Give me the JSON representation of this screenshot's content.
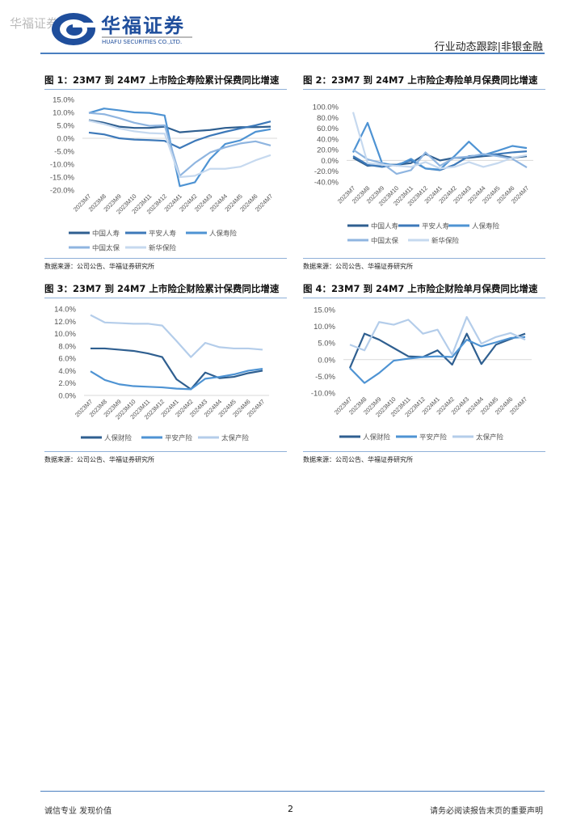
{
  "header": {
    "watermark": "华福证券",
    "brand_cn": "华福证券",
    "brand_en": "HUAFU SECURITIES CO.,LTD.",
    "report_type": "行业动态跟踪|非银金融"
  },
  "footer": {
    "left": "诚信专业  发现价值",
    "page": "2",
    "right": "请务必阅读报告末页的重要声明"
  },
  "colors": {
    "c1": "#2f5f90",
    "c2": "#3d79b9",
    "c3": "#4e93d3",
    "c4": "#8fb5e0",
    "c5": "#c6d9ef"
  },
  "chart_data": [
    {
      "type": "line",
      "title": "图 1：23M7 到 24M7 上市险企寿险累计保费同比增速",
      "source": "数据来源：公司公告、华福证券研究所",
      "categories": [
        "2023M7",
        "2023M8",
        "2023M9",
        "2023M10",
        "2023M11",
        "2023M12",
        "2024M1",
        "2024M2",
        "2024M3",
        "2024M4",
        "2024M5",
        "2024M6",
        "2024M7"
      ],
      "ylim": [
        -20,
        15
      ],
      "yticks": [
        15,
        10,
        5,
        0,
        -5,
        -10,
        -15,
        -20
      ],
      "ytick_labels": [
        "15.0%",
        "10.0%",
        "5.0%",
        "0.0%",
        "-5.0%",
        "-10.0%",
        "-15.0%",
        "-20.0%"
      ],
      "legend": "bottom",
      "series": [
        {
          "name": "中国人寿",
          "color": "#2f5f90",
          "values": [
            7,
            6,
            4.5,
            4,
            4,
            4.5,
            2.3,
            2.8,
            3.2,
            4,
            4.3,
            4.3,
            4.5
          ]
        },
        {
          "name": "平安人寿",
          "color": "#3d79b9",
          "values": [
            2.2,
            1.5,
            0,
            -0.5,
            -0.7,
            -1,
            -3.8,
            -1,
            1,
            2.5,
            3.8,
            5,
            6.5
          ]
        },
        {
          "name": "人保寿险",
          "color": "#4e93d3",
          "values": [
            9.8,
            11.5,
            10.8,
            10,
            9.8,
            8.8,
            -18.5,
            -17,
            -8,
            -2.2,
            -0.8,
            2.5,
            3.5
          ]
        },
        {
          "name": "中国太保",
          "color": "#8fb5e0",
          "values": [
            9.8,
            9.3,
            7.8,
            6,
            4.8,
            5,
            -14.5,
            -9.5,
            -5.5,
            -3.5,
            -2,
            -1.2,
            -2.8
          ]
        },
        {
          "name": "新华保险",
          "color": "#c6d9ef",
          "values": [
            6.8,
            5.5,
            3.8,
            2.7,
            2,
            1.8,
            -15,
            -14.5,
            -11.8,
            -11.8,
            -11,
            -8.5,
            -6.5
          ]
        }
      ]
    },
    {
      "type": "line",
      "title": "图 2：23M7 到 24M7 上市险企寿险单月保费同比增速",
      "source": "数据来源：公司公告、华福证券研究所",
      "categories": [
        "2023M7",
        "2023M8",
        "2023M9",
        "2023M10",
        "2023M11",
        "2023M12",
        "2024M1",
        "2024M2",
        "2024M3",
        "2024M4",
        "2024M5",
        "2024M6",
        "2024M7"
      ],
      "ylim": [
        -40,
        100
      ],
      "yticks": [
        100,
        80,
        60,
        40,
        20,
        0,
        -20,
        -40
      ],
      "ytick_labels": [
        "100.0%",
        "80.0%",
        "60.0%",
        "40.0%",
        "20.0%",
        "0.0%",
        "-20.0%",
        "-40.0%"
      ],
      "legend": "bottom",
      "series": [
        {
          "name": "中国人寿",
          "color": "#2f5f90",
          "values": [
            5,
            -10,
            -8,
            -8,
            -5,
            12,
            0,
            5,
            5,
            8,
            10,
            5,
            8
          ]
        },
        {
          "name": "平安人寿",
          "color": "#3d79b9",
          "values": [
            8,
            -8,
            -12,
            -8,
            0,
            -15,
            -18,
            -8,
            8,
            10,
            12,
            15,
            17
          ]
        },
        {
          "name": "人保寿险",
          "color": "#4e93d3",
          "values": [
            15,
            70,
            -5,
            -10,
            3,
            -15,
            -17,
            8,
            35,
            10,
            18,
            27,
            23
          ]
        },
        {
          "name": "中国太保",
          "color": "#8fb5e0",
          "values": [
            20,
            2,
            -5,
            -25,
            -18,
            15,
            -10,
            5,
            7,
            12,
            8,
            3,
            -13
          ]
        },
        {
          "name": "新华保险",
          "color": "#c6d9ef",
          "values": [
            90,
            -5,
            -8,
            -10,
            -12,
            -3,
            -15,
            -12,
            -3,
            -12,
            -5,
            5,
            10
          ]
        }
      ]
    },
    {
      "type": "line",
      "title": "图 3：23M7 到 24M7 上市险企财险累计保费同比增速",
      "source": "数据来源：公司公告、华福证券研究所",
      "categories": [
        "2023M7",
        "2023M8",
        "2023M9",
        "2023M10",
        "2023M11",
        "2023M12",
        "2024M1",
        "2024M2",
        "2024M3",
        "2024M4",
        "2024M5",
        "2024M6",
        "2024M7"
      ],
      "ylim": [
        0,
        14
      ],
      "yticks": [
        14,
        12,
        10,
        8,
        6,
        4,
        2,
        0
      ],
      "ytick_labels": [
        "14.0%",
        "12.0%",
        "10.0%",
        "8.0%",
        "6.0%",
        "4.0%",
        "2.0%",
        "0.0%"
      ],
      "legend": "bottom",
      "series": [
        {
          "name": "人保财险",
          "color": "#2f5f90",
          "values": [
            7.6,
            7.6,
            7.4,
            7.2,
            6.8,
            6.2,
            2.6,
            1.0,
            3.7,
            2.8,
            3.0,
            3.6,
            4.0
          ]
        },
        {
          "name": "平安产险",
          "color": "#4e93d3",
          "values": [
            3.9,
            2.5,
            1.8,
            1.5,
            1.4,
            1.3,
            1.1,
            1.0,
            2.7,
            3.0,
            3.4,
            4.0,
            4.3
          ]
        },
        {
          "name": "太保产险",
          "color": "#b4cdea",
          "values": [
            13.0,
            11.8,
            11.7,
            11.6,
            11.6,
            11.3,
            8.8,
            6.2,
            8.5,
            7.8,
            7.6,
            7.6,
            7.4
          ]
        }
      ]
    },
    {
      "type": "line",
      "title": "图 4：23M7 到 24M7 上市险企财险单月保费同比增速",
      "source": "数据来源：公司公告、华福证券研究所",
      "categories": [
        "2023M7",
        "2023M8",
        "2023M9",
        "2023M10",
        "2023M11",
        "2023M12",
        "2024M1",
        "2024M2",
        "2024M3",
        "2024M4",
        "2024M5",
        "2024M6",
        "2024M7"
      ],
      "ylim": [
        -10,
        15
      ],
      "yticks": [
        15,
        10,
        5,
        0,
        -5,
        -10
      ],
      "ytick_labels": [
        "15.0%",
        "10.0%",
        "5.0%",
        "0.0%",
        "-5.0%",
        "-10.0%"
      ],
      "legend": "bottom",
      "series": [
        {
          "name": "人保财险",
          "color": "#2f5f90",
          "values": [
            -2.5,
            7.8,
            6,
            3.5,
            1,
            0.8,
            2.8,
            -1.5,
            7.8,
            -1.3,
            4.5,
            6.2,
            7.8
          ]
        },
        {
          "name": "平安产险",
          "color": "#4e93d3",
          "values": [
            -2.5,
            -7,
            -4,
            -0.3,
            0.3,
            0.8,
            1,
            0.8,
            6,
            4,
            5.2,
            6.5,
            6.8
          ]
        },
        {
          "name": "太保产险",
          "color": "#b4cdea",
          "values": [
            4.5,
            2.8,
            11.3,
            10.5,
            12,
            7.8,
            9,
            1.5,
            12.8,
            4.8,
            6.8,
            8,
            6
          ]
        }
      ]
    }
  ]
}
